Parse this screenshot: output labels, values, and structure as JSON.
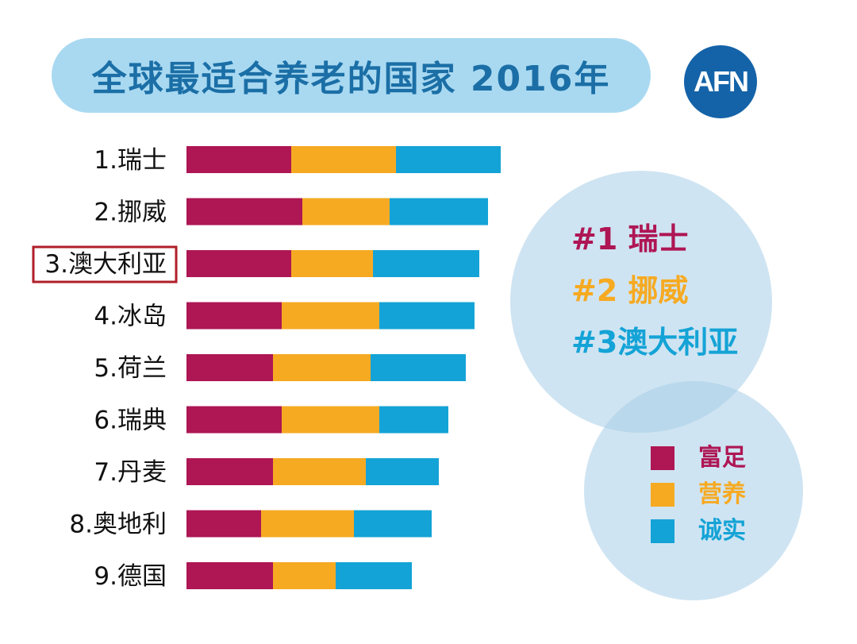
{
  "title": "全球最适合养老的国家 2016年",
  "logo_text": "AFN",
  "colors": {
    "wealth": "#ae1654",
    "nutrition": "#f6aa22",
    "honesty": "#14a3d6",
    "highlight_box": "#b01f2a",
    "title_text": "#1b6fa6",
    "title_bg": "#a9d9f1",
    "logo_bg": "#1463a8"
  },
  "chart_data": {
    "type": "bar",
    "orientation": "horizontal",
    "stacked": true,
    "categories": [
      "1.瑞士",
      "2.挪威",
      "3.澳大利亚",
      "4.冰岛",
      "5.荷兰",
      "6.瑞典",
      "7.丹麦",
      "8.奥地利",
      "9.德国"
    ],
    "highlighted_category": "3.澳大利亚",
    "series": [
      {
        "name": "富足",
        "color": "#ae1654",
        "values": [
          132,
          146,
          132,
          120,
          109,
          120,
          109,
          94,
          109
        ]
      },
      {
        "name": "营养",
        "color": "#f6aa22",
        "values": [
          132,
          110,
          103,
          123,
          123,
          123,
          117,
          117,
          79
        ]
      },
      {
        "name": "诚实",
        "color": "#14a3d6",
        "values": [
          132,
          124,
          134,
          120,
          120,
          87,
          92,
          98,
          96
        ]
      }
    ],
    "legend_position": "bottom-right",
    "grid": false
  },
  "top_ranks": [
    {
      "text": "#1 瑞士",
      "color": "#ae1654"
    },
    {
      "text": "#2 挪威",
      "color": "#f6aa22"
    },
    {
      "text": "#3澳大利亚",
      "color": "#14a3d6"
    }
  ],
  "legend": [
    {
      "label": "富足",
      "color": "#ae1654"
    },
    {
      "label": "营养",
      "color": "#f6aa22"
    },
    {
      "label": "诚实",
      "color": "#14a3d6"
    }
  ]
}
